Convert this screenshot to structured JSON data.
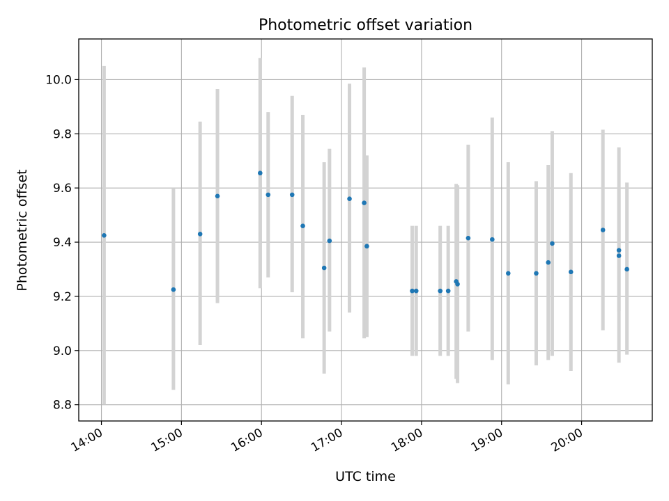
{
  "chart_data": {
    "type": "scatter",
    "title": "Photometric offset variation",
    "xlabel": "UTC time",
    "ylabel": "Photometric offset",
    "x_axis_type": "time",
    "xlim": [
      "13:43",
      "20:53"
    ],
    "ylim": [
      8.74,
      10.15
    ],
    "x_ticks": [
      "14:00",
      "15:00",
      "16:00",
      "17:00",
      "18:00",
      "19:00",
      "20:00"
    ],
    "y_ticks": [
      "8.8",
      "9.0",
      "9.2",
      "9.4",
      "9.6",
      "9.8",
      "10.0"
    ],
    "grid": true,
    "legend": "none",
    "colors": {
      "point": "#1f77b4",
      "errorbar": "#d3d3d3",
      "grid": "#b0b0b0"
    },
    "points": [
      {
        "time": "14:02",
        "value": 9.425,
        "low": 8.8,
        "high": 10.05
      },
      {
        "time": "14:54",
        "value": 9.225,
        "low": 8.855,
        "high": 9.6
      },
      {
        "time": "15:14",
        "value": 9.43,
        "low": 9.02,
        "high": 9.845
      },
      {
        "time": "15:27",
        "value": 9.57,
        "low": 9.175,
        "high": 9.965
      },
      {
        "time": "15:59",
        "value": 9.655,
        "low": 9.23,
        "high": 10.08
      },
      {
        "time": "16:05",
        "value": 9.575,
        "low": 9.27,
        "high": 9.88
      },
      {
        "time": "16:23",
        "value": 9.575,
        "low": 9.215,
        "high": 9.94
      },
      {
        "time": "16:31",
        "value": 9.46,
        "low": 9.045,
        "high": 9.87
      },
      {
        "time": "16:47",
        "value": 9.305,
        "low": 8.915,
        "high": 9.695
      },
      {
        "time": "16:51",
        "value": 9.405,
        "low": 9.07,
        "high": 9.745
      },
      {
        "time": "17:06",
        "value": 9.56,
        "low": 9.14,
        "high": 9.985
      },
      {
        "time": "17:17",
        "value": 9.545,
        "low": 9.045,
        "high": 10.045
      },
      {
        "time": "17:19",
        "value": 9.385,
        "low": 9.05,
        "high": 9.72
      },
      {
        "time": "17:53",
        "value": 9.22,
        "low": 8.98,
        "high": 9.46
      },
      {
        "time": "17:56",
        "value": 9.22,
        "low": 8.98,
        "high": 9.46
      },
      {
        "time": "18:14",
        "value": 9.22,
        "low": 8.98,
        "high": 9.46
      },
      {
        "time": "18:20",
        "value": 9.22,
        "low": 8.98,
        "high": 9.46
      },
      {
        "time": "18:26",
        "value": 9.255,
        "low": 8.895,
        "high": 9.615
      },
      {
        "time": "18:27",
        "value": 9.245,
        "low": 8.88,
        "high": 9.61
      },
      {
        "time": "18:35",
        "value": 9.415,
        "low": 9.07,
        "high": 9.76
      },
      {
        "time": "18:53",
        "value": 9.41,
        "low": 8.965,
        "high": 9.86
      },
      {
        "time": "19:05",
        "value": 9.285,
        "low": 8.875,
        "high": 9.695
      },
      {
        "time": "19:26",
        "value": 9.285,
        "low": 8.945,
        "high": 9.625
      },
      {
        "time": "19:35",
        "value": 9.325,
        "low": 8.965,
        "high": 9.685
      },
      {
        "time": "19:38",
        "value": 9.395,
        "low": 8.98,
        "high": 9.81
      },
      {
        "time": "19:52",
        "value": 9.29,
        "low": 8.925,
        "high": 9.655
      },
      {
        "time": "20:16",
        "value": 9.445,
        "low": 9.075,
        "high": 9.815
      },
      {
        "time": "20:28",
        "value": 9.35,
        "low": 8.955,
        "high": 9.75
      },
      {
        "time": "20:28",
        "value": 9.37,
        "low": 9.145,
        "high": 9.595
      },
      {
        "time": "20:34",
        "value": 9.3,
        "low": 8.985,
        "high": 9.62
      }
    ]
  }
}
